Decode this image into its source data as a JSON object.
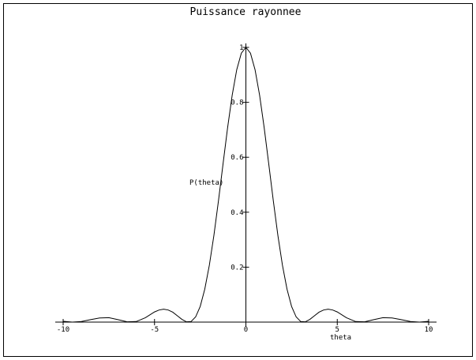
{
  "chart_data": {
    "type": "line",
    "title": "Puissance rayonnee",
    "x_label": "theta",
    "y_label": "P(theta)",
    "x": [
      -10,
      -9.5,
      -9,
      -8.5,
      -8,
      -7.5,
      -7,
      -6.5,
      -6,
      -5.5,
      -5,
      -4.75,
      -4.5,
      -4.25,
      -4,
      -3.75,
      -3.5,
      -3.25,
      -3,
      -2.75,
      -2.5,
      -2.25,
      -2,
      -1.75,
      -1.5,
      -1.25,
      -1,
      -0.75,
      -0.5,
      -0.25,
      0,
      0.25,
      0.5,
      0.75,
      1,
      1.25,
      1.5,
      1.75,
      2,
      2.25,
      2.5,
      2.75,
      3,
      3.25,
      3.5,
      3.75,
      4,
      4.25,
      4.5,
      4.75,
      5,
      5.5,
      6,
      6.5,
      7,
      7.5,
      8,
      8.5,
      9,
      9.5,
      10
    ],
    "series": [
      {
        "name": "P(theta)",
        "color": "#000000",
        "values": [
          0.003,
          0.0,
          0.002,
          0.009,
          0.015,
          0.016,
          0.009,
          0.001,
          0.002,
          0.016,
          0.037,
          0.044,
          0.047,
          0.044,
          0.036,
          0.023,
          0.01,
          0.001,
          0.002,
          0.019,
          0.057,
          0.12,
          0.207,
          0.316,
          0.442,
          0.576,
          0.708,
          0.826,
          0.919,
          0.979,
          1,
          0.979,
          0.919,
          0.826,
          0.708,
          0.576,
          0.442,
          0.316,
          0.207,
          0.12,
          0.057,
          0.019,
          0.002,
          0.001,
          0.01,
          0.023,
          0.036,
          0.044,
          0.047,
          0.044,
          0.037,
          0.016,
          0.002,
          0.001,
          0.009,
          0.016,
          0.015,
          0.009,
          0.002,
          0.0,
          0.003
        ]
      }
    ],
    "xlim": [
      -10,
      10
    ],
    "ylim": [
      0,
      1
    ],
    "xticks": [
      -10,
      -5,
      0,
      5,
      10
    ],
    "yticks": [
      0.2,
      0.4,
      0.6,
      0.8,
      1
    ]
  }
}
